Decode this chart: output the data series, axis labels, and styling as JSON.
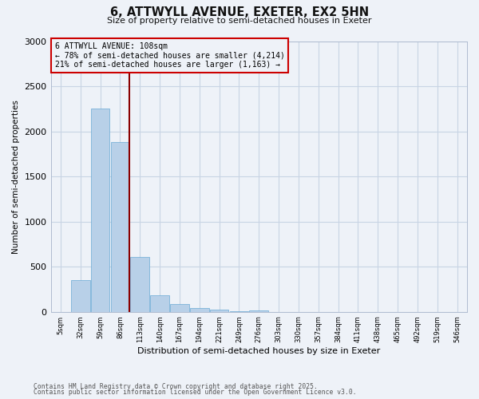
{
  "title": "6, ATTWYLL AVENUE, EXETER, EX2 5HN",
  "subtitle": "Size of property relative to semi-detached houses in Exeter",
  "xlabel": "Distribution of semi-detached houses by size in Exeter",
  "ylabel": "Number of semi-detached properties",
  "bin_labels": [
    "5sqm",
    "32sqm",
    "59sqm",
    "86sqm",
    "113sqm",
    "140sqm",
    "167sqm",
    "194sqm",
    "221sqm",
    "249sqm",
    "276sqm",
    "303sqm",
    "330sqm",
    "357sqm",
    "384sqm",
    "411sqm",
    "438sqm",
    "465sqm",
    "492sqm",
    "519sqm",
    "546sqm"
  ],
  "bar_values": [
    0,
    350,
    2250,
    1880,
    610,
    180,
    90,
    45,
    20,
    5,
    15,
    0,
    0,
    0,
    0,
    0,
    0,
    0,
    0,
    0,
    0
  ],
  "bar_color": "#b8d0e8",
  "bar_edgecolor": "#6aaad4",
  "vline_color": "#8b0000",
  "annotation_box_edgecolor": "#cc0000",
  "ylim": [
    0,
    3000
  ],
  "yticks": [
    0,
    500,
    1000,
    1500,
    2000,
    2500,
    3000
  ],
  "grid_color": "#c8d4e4",
  "bg_color": "#eef2f8",
  "footnote1": "Contains HM Land Registry data © Crown copyright and database right 2025.",
  "footnote2": "Contains public sector information licensed under the Open Government Licence v3.0."
}
